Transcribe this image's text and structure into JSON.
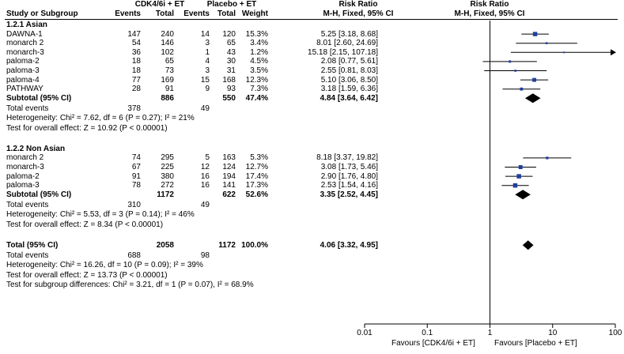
{
  "header": {
    "group1": "CDK4/6i + ET",
    "group2": "Placebo + ET",
    "rr_title": "Risk Ratio",
    "rr_method": "M-H, Fixed, 95% CI",
    "plot_title": "Risk Ratio",
    "plot_method": "M-H, Fixed, 95% CI",
    "cols": {
      "study": "Study or Subgroup",
      "events1": "Events",
      "total1": "Total",
      "events2": "Events",
      "total2": "Total",
      "weight": "Weight"
    }
  },
  "subgroups": [
    {
      "title": "1.2.1 Asian",
      "studies": [
        {
          "name": "DAWNA-1",
          "e1": "147",
          "t1": "240",
          "e2": "14",
          "t2": "120",
          "w": "15.3%",
          "ci": "5.25 [3.18, 8.68]"
        },
        {
          "name": "monarch 2",
          "e1": "54",
          "t1": "146",
          "e2": "3",
          "t2": "65",
          "w": "3.4%",
          "ci": "8.01 [2.60, 24.69]"
        },
        {
          "name": "monarch-3",
          "e1": "36",
          "t1": "102",
          "e2": "1",
          "t2": "43",
          "w": "1.2%",
          "ci": "15.18 [2.15, 107.18]"
        },
        {
          "name": "paloma-2",
          "e1": "18",
          "t1": "65",
          "e2": "4",
          "t2": "30",
          "w": "4.5%",
          "ci": "2.08 [0.77, 5.61]"
        },
        {
          "name": "paloma-3",
          "e1": "18",
          "t1": "73",
          "e2": "3",
          "t2": "31",
          "w": "3.5%",
          "ci": "2.55 [0.81, 8.03]"
        },
        {
          "name": "paloma-4",
          "e1": "77",
          "t1": "169",
          "e2": "15",
          "t2": "168",
          "w": "12.3%",
          "ci": "5.10 [3.06, 8.50]"
        },
        {
          "name": "PATHWAY",
          "e1": "28",
          "t1": "91",
          "e2": "9",
          "t2": "93",
          "w": "7.3%",
          "ci": "3.18 [1.59, 6.36]"
        }
      ],
      "subtotal": {
        "label": "Subtotal (95% CI)",
        "t1": "886",
        "t2": "550",
        "w": "47.4%",
        "ci": "4.84 [3.64, 6.42]"
      },
      "total_events": {
        "label": "Total events",
        "e1": "378",
        "e2": "49"
      },
      "heterogeneity": "Heterogeneity: Chi² = 7.62, df = 6 (P = 0.27); I² = 21%",
      "overall": "Test for overall effect: Z = 10.92 (P < 0.00001)"
    },
    {
      "title": "1.2.2 Non Asian",
      "studies": [
        {
          "name": "monarch 2",
          "e1": "74",
          "t1": "295",
          "e2": "5",
          "t2": "163",
          "w": "5.3%",
          "ci": "8.18 [3.37, 19.82]"
        },
        {
          "name": "monarch-3",
          "e1": "67",
          "t1": "225",
          "e2": "12",
          "t2": "124",
          "w": "12.7%",
          "ci": "3.08 [1.73, 5.46]"
        },
        {
          "name": "paloma-2",
          "e1": "91",
          "t1": "380",
          "e2": "16",
          "t2": "194",
          "w": "17.4%",
          "ci": "2.90 [1.76, 4.80]"
        },
        {
          "name": "paloma-3",
          "e1": "78",
          "t1": "272",
          "e2": "16",
          "t2": "141",
          "w": "17.3%",
          "ci": "2.53 [1.54, 4.16]"
        }
      ],
      "subtotal": {
        "label": "Subtotal (95% CI)",
        "t1": "1172",
        "t2": "622",
        "w": "52.6%",
        "ci": "3.35 [2.52, 4.45]"
      },
      "total_events": {
        "label": "Total events",
        "e1": "310",
        "e2": "49"
      },
      "heterogeneity": "Heterogeneity: Chi² = 5.53, df = 3 (P = 0.14); I² = 46%",
      "overall": "Test for overall effect: Z = 8.34 (P < 0.00001)"
    }
  ],
  "total": {
    "label": "Total (95% CI)",
    "t1": "2058",
    "t2": "1172",
    "w": "100.0%",
    "ci": "4.06 [3.32, 4.95]",
    "events_label": "Total events",
    "e1": "688",
    "e2": "98",
    "heterogeneity": "Heterogeneity: Chi² = 16.26, df = 10 (P = 0.09); I² = 39%",
    "overall": "Test for overall effect: Z = 13.73 (P < 0.00001)",
    "subgroup_diff": "Test for subgroup differences: Chi² = 3.21, df = 1 (P = 0.07), I² = 68.9%"
  },
  "axis": {
    "ticks": [
      "0.01",
      "0.1",
      "1",
      "10",
      "100"
    ],
    "favours_left": "Favours [CDK4/6i + ET]",
    "favours_right": "Favours [Placebo + ET]"
  },
  "chart_data": {
    "type": "forest",
    "scale": "log",
    "xlim": [
      0.01,
      100
    ],
    "null_line": 1,
    "series": [
      {
        "name": "DAWNA-1",
        "estimate": 5.25,
        "lower": 3.18,
        "upper": 8.68,
        "weight": 15.3
      },
      {
        "name": "monarch 2",
        "estimate": 8.01,
        "lower": 2.6,
        "upper": 24.69,
        "weight": 3.4
      },
      {
        "name": "monarch-3",
        "estimate": 15.18,
        "lower": 2.15,
        "upper": 107.18,
        "weight": 1.2
      },
      {
        "name": "paloma-2",
        "estimate": 2.08,
        "lower": 0.77,
        "upper": 5.61,
        "weight": 4.5
      },
      {
        "name": "paloma-3",
        "estimate": 2.55,
        "lower": 0.81,
        "upper": 8.03,
        "weight": 3.5
      },
      {
        "name": "paloma-4",
        "estimate": 5.1,
        "lower": 3.06,
        "upper": 8.5,
        "weight": 12.3
      },
      {
        "name": "PATHWAY",
        "estimate": 3.18,
        "lower": 1.59,
        "upper": 6.36,
        "weight": 7.3
      },
      {
        "name": "Subtotal (95% CI)",
        "estimate": 4.84,
        "lower": 3.64,
        "upper": 6.42,
        "diamond": true
      },
      {
        "name": "monarch 2",
        "estimate": 8.18,
        "lower": 3.37,
        "upper": 19.82,
        "weight": 5.3
      },
      {
        "name": "monarch-3",
        "estimate": 3.08,
        "lower": 1.73,
        "upper": 5.46,
        "weight": 12.7
      },
      {
        "name": "paloma-2",
        "estimate": 2.9,
        "lower": 1.76,
        "upper": 4.8,
        "weight": 17.4
      },
      {
        "name": "paloma-3",
        "estimate": 2.53,
        "lower": 1.54,
        "upper": 4.16,
        "weight": 17.3
      },
      {
        "name": "Subtotal (95% CI)",
        "estimate": 3.35,
        "lower": 2.52,
        "upper": 4.45,
        "diamond": true
      },
      {
        "name": "Total (95% CI)",
        "estimate": 4.06,
        "lower": 3.32,
        "upper": 4.95,
        "diamond": true
      }
    ],
    "colors": {
      "marker": "#1f3f9f",
      "line": "#000000"
    }
  }
}
